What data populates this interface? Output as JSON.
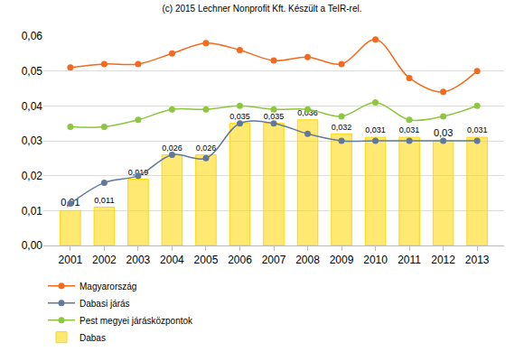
{
  "chart_data": {
    "type": "bar",
    "title": "(c) 2015 Lechner Nonprofit Kft. Készült a TeIR-rel.",
    "categories": [
      "2001",
      "2002",
      "2003",
      "2004",
      "2005",
      "2006",
      "2007",
      "2008",
      "2009",
      "2010",
      "2011",
      "2012",
      "2013"
    ],
    "series": [
      {
        "name": "Magyarország",
        "type": "line",
        "color": "#f26b1d",
        "marker": "circle",
        "line_style": "spline",
        "values": [
          0.051,
          0.052,
          0.052,
          0.055,
          0.058,
          0.056,
          0.053,
          0.054,
          0.052,
          0.059,
          0.048,
          0.044,
          0.05
        ]
      },
      {
        "name": "Dabasi járás",
        "type": "line",
        "color": "#60799a",
        "marker": "circle",
        "line_style": "spline",
        "values": [
          0.012,
          0.018,
          0.02,
          0.026,
          0.025,
          0.035,
          0.035,
          0.032,
          0.03,
          0.03,
          0.03,
          0.03,
          0.03
        ]
      },
      {
        "name": "Pest megyei járásközpontok",
        "type": "line",
        "color": "#8dc63f",
        "marker": "circle",
        "line_style": "spline",
        "values": [
          0.034,
          0.034,
          0.036,
          0.039,
          0.039,
          0.04,
          0.039,
          0.039,
          0.037,
          0.041,
          0.036,
          0.037,
          0.04
        ]
      },
      {
        "name": "Dabas",
        "type": "bar",
        "color": "#ffd700",
        "values": [
          0.01,
          0.011,
          0.019,
          0.026,
          0.026,
          0.035,
          0.035,
          0.036,
          0.032,
          0.031,
          0.031,
          0.03,
          0.031
        ],
        "value_labels": [
          "0,01",
          "0,011",
          "0,019",
          "0,026",
          "0,026",
          "0,035",
          "0,035",
          "0,036",
          "0,032",
          "0,031",
          "0,031",
          "0,03",
          "0,031"
        ]
      }
    ],
    "ylim": [
      0,
      0.06
    ],
    "yticks": [
      {
        "value": 0,
        "label": "0,00"
      },
      {
        "value": 0.01,
        "label": "0,01"
      },
      {
        "value": 0.02,
        "label": "0,02"
      },
      {
        "value": 0.03,
        "label": "0,03"
      },
      {
        "value": 0.04,
        "label": "0,04"
      },
      {
        "value": 0.05,
        "label": "0,05"
      },
      {
        "value": 0.06,
        "label": "0,06"
      }
    ],
    "grid": true,
    "legend": "bottom",
    "data_labels": true
  }
}
